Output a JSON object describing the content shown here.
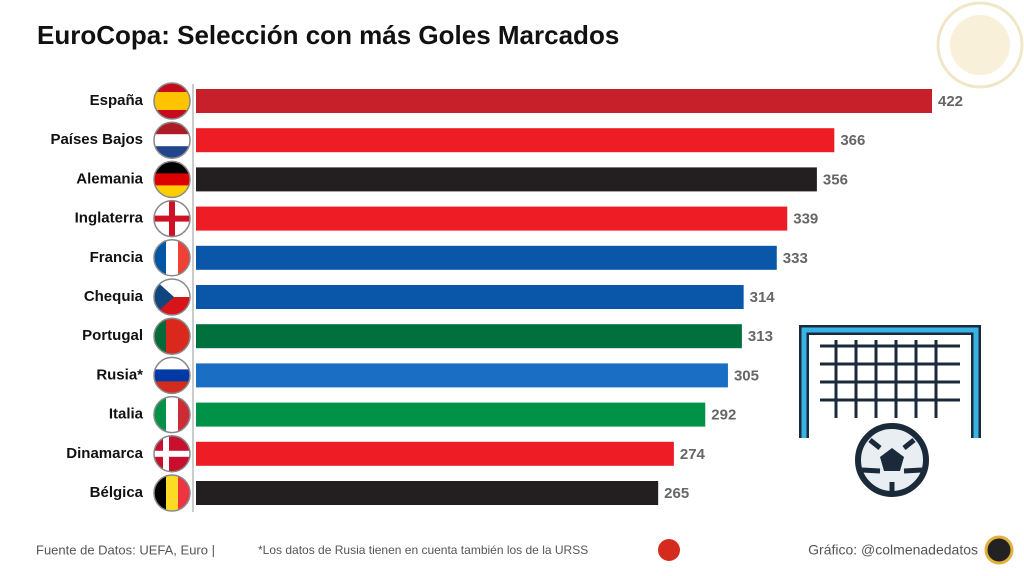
{
  "chart_data": {
    "type": "bar",
    "orientation": "horizontal",
    "title": "EuroCopa: Selección con más Goles Marcados",
    "categories": [
      "España",
      "Países Bajos",
      "Alemania",
      "Inglaterra",
      "Francia",
      "Chequia",
      "Portugal",
      "Rusia*",
      "Italia",
      "Dinamarca",
      "Bélgica"
    ],
    "values": [
      422,
      366,
      356,
      339,
      333,
      314,
      313,
      305,
      292,
      274,
      265
    ],
    "colors": [
      "#c8202a",
      "#ee1c25",
      "#231f20",
      "#ee1c25",
      "#0a56a8",
      "#0a56a8",
      "#00703c",
      "#1a6fc4",
      "#009246",
      "#ee1c25",
      "#231f20"
    ],
    "source": "Fuente de Datos: UEFA, Euro |",
    "note": "*Los datos de Rusia tienen en cuenta también los de la URSS",
    "credit": "Gráfico: @colmenadedatos"
  }
}
